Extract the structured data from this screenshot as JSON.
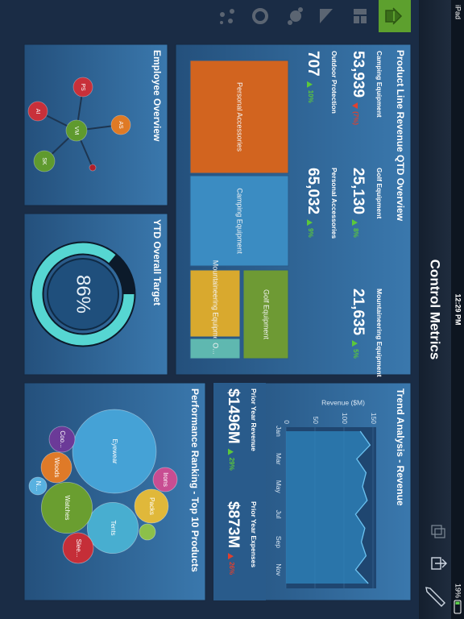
{
  "status_bar": {
    "device": "iPad",
    "time": "12:29 PM",
    "battery": "19%"
  },
  "header": {
    "title": "Control Metrics"
  },
  "product_line": {
    "title": "Product Line Revenue QTD Overview",
    "kpis": [
      {
        "label": "Camping Equipment",
        "value": "53,939",
        "change": "(7%)",
        "direction": "down"
      },
      {
        "label": "Golf Equipment",
        "value": "25,130",
        "change": "8%",
        "direction": "up"
      },
      {
        "label": "Mountaineering Equipment",
        "value": "21,635",
        "change": "5%",
        "direction": "up"
      },
      {
        "label": "Outdoor Protection",
        "value": "707",
        "change": "10%",
        "direction": "up"
      },
      {
        "label": "Personal Accessories",
        "value": "65,032",
        "change": "9%",
        "direction": "up"
      }
    ],
    "treemap": [
      {
        "label": "Camping Equipment",
        "color": "#3b8cc2"
      },
      {
        "label": "Golf Equipment",
        "color": "#6e9a34"
      },
      {
        "label": "Mountaineering Equipment",
        "color": "#d9a92e"
      },
      {
        "label": "O...",
        "color": "#5fb8b0"
      },
      {
        "label": "Personal Accessories",
        "color": "#d2641f"
      }
    ]
  },
  "employee_overview": {
    "title": "Employee Overview",
    "nodes": [
      {
        "label": "VM",
        "color": "#5f9a2e"
      },
      {
        "label": "PS",
        "color": "#c8303a"
      },
      {
        "label": "AS",
        "color": "#df7a25"
      },
      {
        "label": "AI",
        "color": "#c8303a"
      },
      {
        "label": "SK",
        "color": "#5f9a2e"
      },
      {
        "label": null,
        "color": "#b0202a"
      }
    ]
  },
  "chart_data": [
    {
      "type": "area",
      "title": "Trend Analysis - Revenue",
      "y_label": "Revenue ($M)",
      "categories": [
        "Jan",
        null,
        "Mar",
        null,
        "May",
        null,
        "Jul",
        null,
        "Sep",
        null,
        "Nov",
        null
      ],
      "values": [
        128,
        145,
        122,
        138,
        132,
        140,
        120,
        136,
        130,
        138,
        120,
        142
      ],
      "color": "#2f86bd",
      "ylim": [
        0,
        150
      ],
      "yticks": [
        0,
        50,
        100,
        150
      ],
      "grid": true,
      "summary": [
        {
          "label": "Prior Year Revenue",
          "value": "$1496M",
          "change": "29%",
          "direction": "up",
          "color": "#5cc83a"
        },
        {
          "label": "Prior Year Expenses",
          "value": "$873M",
          "change": "26%",
          "direction": "up",
          "color": "#e0402e"
        }
      ]
    },
    {
      "type": "bubble",
      "title": "Performance Ranking - Top 10 Products",
      "categories": [
        "Eyewear",
        "Tents",
        "Watches",
        "Packs",
        "Irons",
        "Slee...",
        "Woods",
        "Coo...",
        "N...",
        null
      ],
      "values": [
        2700,
        1000,
        1000,
        440,
        225,
        360,
        360,
        256,
        121,
        100
      ],
      "colors": [
        "#45a2d6",
        "#48aed0",
        "#6a9e30",
        "#e0b83a",
        "#c84d92",
        "#c52e38",
        "#df7a28",
        "#6b3a98",
        "#58b1e0",
        "#8cc04a"
      ]
    },
    {
      "type": "gauge",
      "title": "YTD Overall Target",
      "value": 86,
      "value_label": "86%",
      "color": "#56d6d2",
      "track_color": "#0c1a2a",
      "ylim": [
        0,
        100
      ]
    }
  ]
}
